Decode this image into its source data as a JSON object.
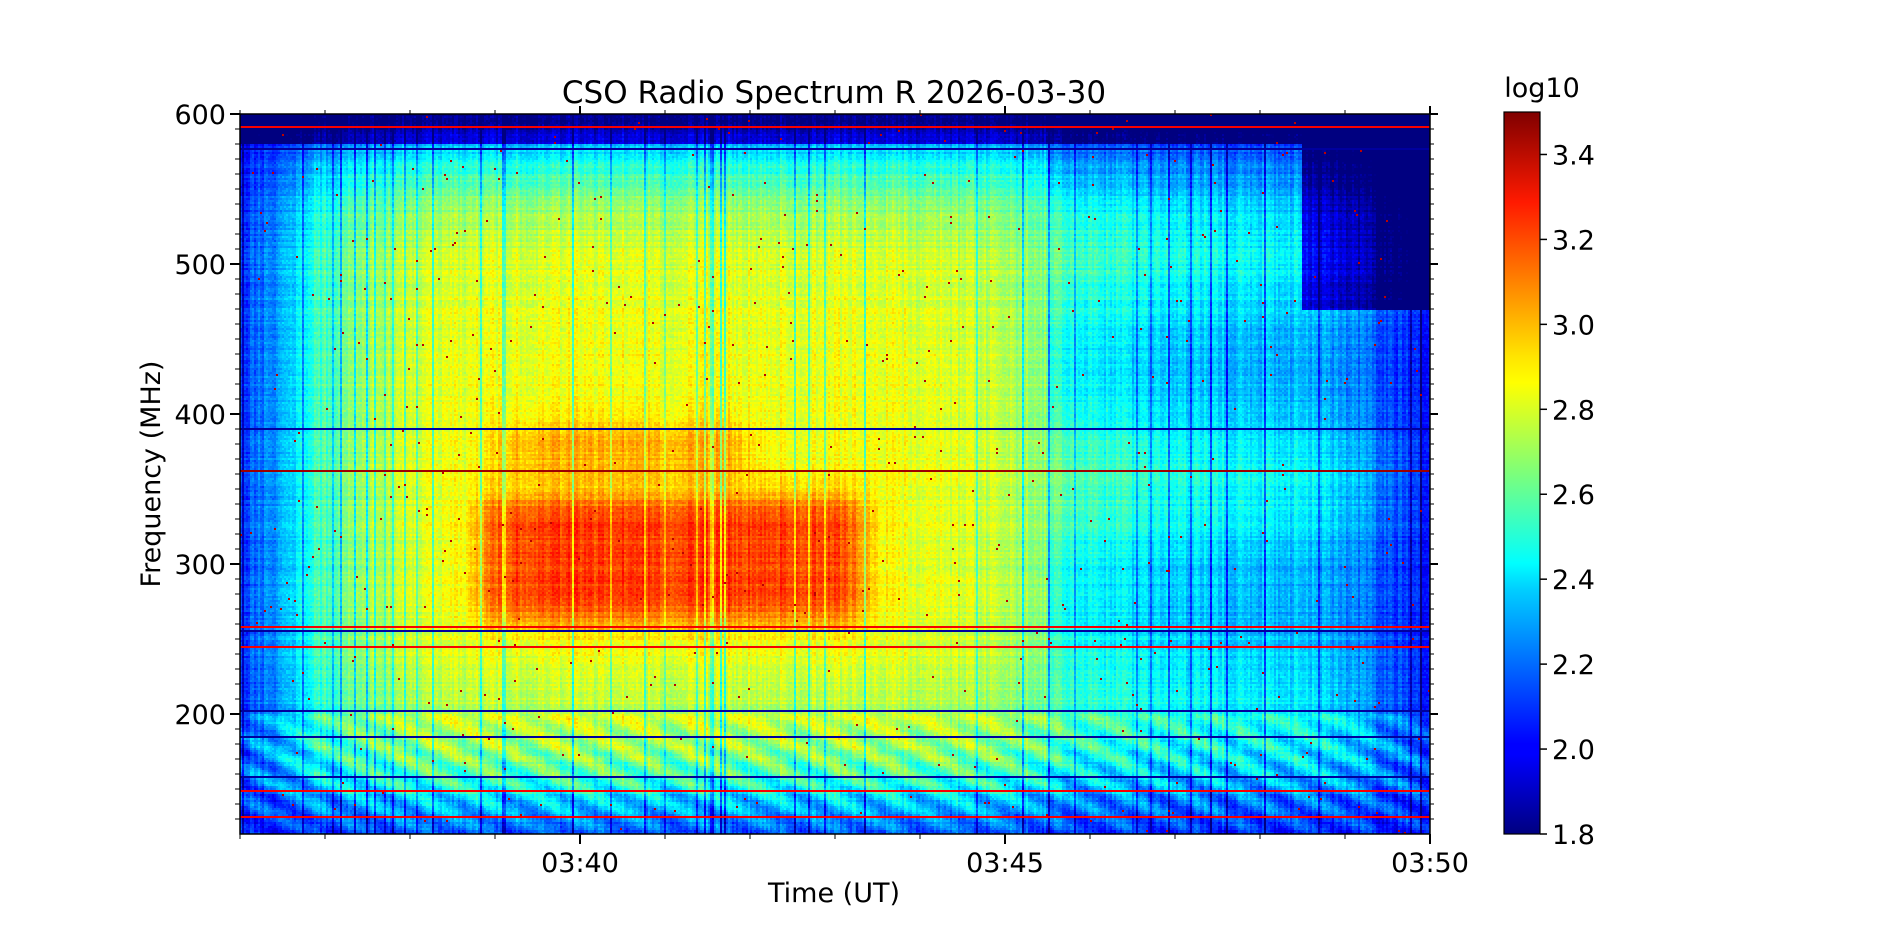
{
  "chart_data": {
    "type": "heatmap",
    "title": "CSO Radio Spectrum R 2026-03-30",
    "xlabel": "Time (UT)",
    "ylabel": "Frequency (MHz)",
    "x_start": "03:36:00",
    "x_end": "03:50:00",
    "xlim_minutes": [
      216,
      230
    ],
    "x_ticks": [
      {
        "label": "03:40",
        "minute": 220
      },
      {
        "label": "03:45",
        "minute": 225
      },
      {
        "label": "03:50",
        "minute": 230
      }
    ],
    "ylim": [
      120,
      600
    ],
    "y_ticks": [
      200,
      300,
      400,
      500,
      600
    ],
    "colorbar": {
      "label": "log10",
      "range": [
        1.8,
        3.5
      ],
      "ticks": [
        "1.8",
        "2.0",
        "2.2",
        "2.4",
        "2.6",
        "2.8",
        "3.0",
        "3.2",
        "3.4"
      ],
      "colormap": "jet"
    },
    "features": [
      {
        "name": "burst core",
        "time_range": [
          "03:38:50",
          "03:43:20"
        ],
        "freq_range": [
          260,
          345
        ],
        "peak_log10": 3.2
      },
      {
        "name": "upper lobe",
        "time_range": [
          "03:39:00",
          "03:42:00"
        ],
        "freq_range": [
          360,
          395
        ],
        "peak_log10": 2.95
      },
      {
        "name": "broad emission",
        "time_range": [
          "03:36:30",
          "03:49:30"
        ],
        "freq_range": [
          150,
          580
        ],
        "level_log10": 2.5
      }
    ],
    "rfi_lines_mhz": [
      362,
      390,
      255,
      258,
      245,
      592,
      577,
      201,
      184,
      158,
      148,
      131
    ]
  }
}
